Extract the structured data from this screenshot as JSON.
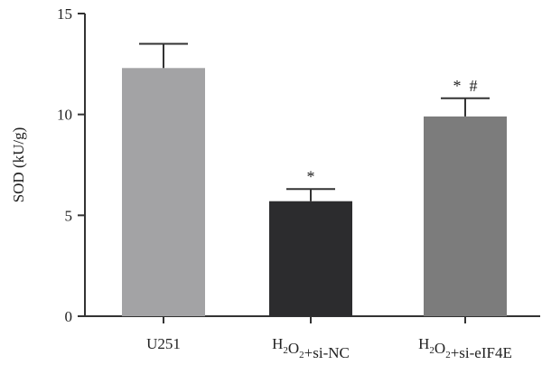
{
  "chart_data": {
    "type": "bar",
    "title": "",
    "xlabel": "",
    "ylabel": "SOD (kU/g)",
    "ylim": [
      0,
      15
    ],
    "yticks": [
      0,
      5,
      10,
      15
    ],
    "grid": false,
    "categories": [
      {
        "main": "U251",
        "sub": "",
        "rest": ""
      },
      {
        "main": "H",
        "sub": "2",
        "mid": "O",
        "sub2": "2",
        "rest": "+si-NC"
      },
      {
        "main": "H",
        "sub": "2",
        "mid": "O",
        "sub2": "2",
        "rest": "+si-eIF4E"
      }
    ],
    "values": [
      12.3,
      5.7,
      9.9
    ],
    "errors": [
      1.2,
      0.6,
      0.9
    ],
    "annotations": [
      "",
      "*",
      "*  #"
    ],
    "colors": [
      "#a3a3a5",
      "#2c2c2e",
      "#7c7c7c"
    ]
  }
}
